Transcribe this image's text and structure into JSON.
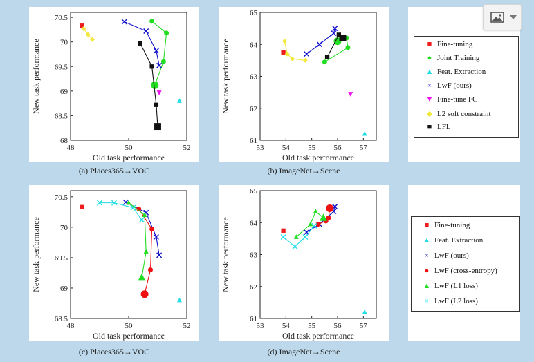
{
  "chart_data": [
    {
      "type": "scatter",
      "xlabel": "Old task performance",
      "ylabel": "New task performance",
      "xlim": [
        48,
        52
      ],
      "ylim": [
        68,
        70.6
      ],
      "xticks": [
        "48",
        "50",
        "52"
      ],
      "yticks": [
        "68",
        "68.5",
        "69",
        "69.5",
        "70",
        "70.5"
      ],
      "caption": "(a) Places365→VOC",
      "series": [
        {
          "name": "Fine-tuning",
          "color": "#ee1c1c",
          "marker": "square",
          "points": [
            [
              48.4,
              70.33
            ]
          ]
        },
        {
          "name": "Joint Training",
          "color": "#22dd22",
          "marker": "circle",
          "points": [
            [
              50.8,
              70.42
            ],
            [
              51.3,
              70.18
            ],
            [
              51.2,
              69.6
            ],
            [
              50.9,
              69.12
            ]
          ]
        },
        {
          "name": "Feat. Extraction",
          "color": "#22dde6",
          "marker": "triangle-up",
          "points": [
            [
              51.75,
              68.8
            ]
          ]
        },
        {
          "name": "LwF (ours)",
          "color": "#1010cc",
          "marker": "x",
          "points": [
            [
              49.85,
              70.41
            ],
            [
              50.6,
              70.22
            ],
            [
              50.95,
              69.82
            ],
            [
              51.05,
              69.52
            ]
          ]
        },
        {
          "name": "Fine-tune FC",
          "color": "#ee11ee",
          "marker": "triangle-down",
          "points": [
            [
              51.05,
              68.97
            ]
          ]
        },
        {
          "name": "L2 soft constraint",
          "color": "#f2e83a",
          "marker": "diamond",
          "points": [
            [
              48.45,
              70.27
            ],
            [
              48.6,
              70.15
            ],
            [
              48.75,
              70.05
            ]
          ]
        },
        {
          "name": "LFL",
          "color": "#111111",
          "marker": "square",
          "points": [
            [
              50.4,
              69.97
            ],
            [
              50.8,
              69.5
            ],
            [
              50.95,
              68.72
            ],
            [
              51.0,
              68.28
            ]
          ]
        }
      ]
    },
    {
      "type": "scatter",
      "xlabel": "Old task performance",
      "ylabel": "New task performance",
      "xlim": [
        53,
        57.5
      ],
      "ylim": [
        61,
        65
      ],
      "xticks": [
        "53",
        "54",
        "55",
        "56",
        "57"
      ],
      "yticks": [
        "61",
        "62",
        "63",
        "64",
        "65"
      ],
      "caption": "(b) ImageNet→Scene",
      "series": [
        {
          "name": "Fine-tuning",
          "color": "#ee1c1c",
          "marker": "square",
          "points": [
            [
              53.9,
              63.75
            ]
          ]
        },
        {
          "name": "Joint Training",
          "color": "#22dd22",
          "marker": "circle",
          "points": [
            [
              55.5,
              63.45
            ],
            [
              56.4,
              63.9
            ],
            [
              56.35,
              64.2
            ],
            [
              56.0,
              64.1
            ]
          ]
        },
        {
          "name": "Feat. Extraction",
          "color": "#22dde6",
          "marker": "triangle-up",
          "points": [
            [
              57.05,
              61.2
            ]
          ]
        },
        {
          "name": "LwF (ours)",
          "color": "#1010cc",
          "marker": "x",
          "points": [
            [
              54.8,
              63.7
            ],
            [
              55.3,
              64.0
            ],
            [
              55.85,
              64.35
            ],
            [
              55.9,
              64.5
            ]
          ]
        },
        {
          "name": "Fine-tune FC",
          "color": "#ee11ee",
          "marker": "triangle-down",
          "points": [
            [
              56.5,
              62.45
            ]
          ]
        },
        {
          "name": "L2 soft constraint",
          "color": "#f2e83a",
          "marker": "diamond",
          "points": [
            [
              53.95,
              64.1
            ],
            [
              54.05,
              63.7
            ],
            [
              54.25,
              63.55
            ],
            [
              54.75,
              63.5
            ]
          ]
        },
        {
          "name": "LFL",
          "color": "#111111",
          "marker": "square",
          "points": [
            [
              55.6,
              63.6
            ],
            [
              56.05,
              64.3
            ],
            [
              56.2,
              64.2
            ]
          ]
        }
      ]
    },
    {
      "type": "scatter",
      "xlabel": "Old task performance",
      "ylabel": "New task performance",
      "xlim": [
        48,
        52
      ],
      "ylim": [
        68.5,
        70.6
      ],
      "xticks": [
        "48",
        "50",
        "52"
      ],
      "yticks": [
        "68.5",
        "69",
        "69.5",
        "70",
        "70.5"
      ],
      "caption": "(c) Places365→VOC",
      "series": [
        {
          "name": "Fine-tuning",
          "color": "#ee1c1c",
          "marker": "square",
          "points": [
            [
              48.4,
              70.33
            ]
          ]
        },
        {
          "name": "Feat. Extraction",
          "color": "#22dde6",
          "marker": "triangle-up",
          "points": [
            [
              51.75,
              68.8
            ]
          ]
        },
        {
          "name": "LwF (ours)",
          "color": "#1010cc",
          "marker": "x",
          "points": [
            [
              49.9,
              70.41
            ],
            [
              50.6,
              70.24
            ],
            [
              50.95,
              69.84
            ],
            [
              51.05,
              69.54
            ]
          ]
        },
        {
          "name": "LwF (cross-entropy)",
          "color": "#ee1111",
          "marker": "circle",
          "points": [
            [
              50.35,
              70.3
            ],
            [
              50.8,
              69.97
            ],
            [
              50.75,
              69.3
            ],
            [
              50.55,
              68.9
            ]
          ]
        },
        {
          "name": "LwF (L1 loss)",
          "color": "#22dd22",
          "marker": "triangle-up",
          "points": [
            [
              50.0,
              70.4
            ],
            [
              50.55,
              70.2
            ],
            [
              50.6,
              69.6
            ],
            [
              50.45,
              69.17
            ]
          ]
        },
        {
          "name": "LwF (L2 loss)",
          "color": "#22dde6",
          "marker": "x",
          "points": [
            [
              49.0,
              70.4
            ],
            [
              49.5,
              70.4
            ],
            [
              50.15,
              70.32
            ],
            [
              50.45,
              70.12
            ]
          ]
        }
      ]
    },
    {
      "type": "scatter",
      "xlabel": "Old task performance",
      "ylabel": "New task performance",
      "xlim": [
        53,
        57.5
      ],
      "ylim": [
        61,
        65
      ],
      "xticks": [
        "53",
        "54",
        "55",
        "56",
        "57"
      ],
      "yticks": [
        "61",
        "62",
        "63",
        "64",
        "65"
      ],
      "caption": "(d) ImageNet→Scene",
      "series": [
        {
          "name": "Fine-tuning",
          "color": "#ee1c1c",
          "marker": "square",
          "points": [
            [
              53.9,
              63.75
            ]
          ]
        },
        {
          "name": "Feat. Extraction",
          "color": "#22dde6",
          "marker": "triangle-up",
          "points": [
            [
              57.05,
              61.2
            ]
          ]
        },
        {
          "name": "LwF (ours)",
          "color": "#1010cc",
          "marker": "x",
          "points": [
            [
              54.8,
              63.7
            ],
            [
              55.3,
              63.95
            ],
            [
              55.85,
              64.35
            ],
            [
              55.9,
              64.5
            ]
          ]
        },
        {
          "name": "LwF (cross-entropy)",
          "color": "#ee1111",
          "marker": "circle",
          "points": [
            [
              55.25,
              63.95
            ],
            [
              55.55,
              64.05
            ],
            [
              55.65,
              64.15
            ],
            [
              55.7,
              64.45
            ]
          ]
        },
        {
          "name": "LwF (L1 loss)",
          "color": "#22dd22",
          "marker": "triangle-up",
          "points": [
            [
              54.4,
              63.55
            ],
            [
              54.95,
              63.95
            ],
            [
              55.15,
              64.35
            ],
            [
              55.45,
              64.15
            ]
          ]
        },
        {
          "name": "LwF (L2 loss)",
          "color": "#22dde6",
          "marker": "x",
          "points": [
            [
              53.9,
              63.55
            ],
            [
              54.35,
              63.25
            ],
            [
              54.75,
              63.55
            ],
            [
              55.1,
              63.9
            ]
          ]
        }
      ]
    }
  ],
  "legends": [
    {
      "items": [
        {
          "label": "Fine-tuning",
          "color": "#ee1c1c",
          "symbol": "■"
        },
        {
          "label": "Joint Training",
          "color": "#22dd22",
          "symbol": "●"
        },
        {
          "label": "Feat. Extraction",
          "color": "#22dde6",
          "symbol": "▲"
        },
        {
          "label": "LwF (ours)",
          "color": "#1010cc",
          "symbol": "×"
        },
        {
          "label": "Fine-tune FC",
          "color": "#ee11ee",
          "symbol": "▼"
        },
        {
          "label": "L2 soft constraint",
          "color": "#f2e83a",
          "symbol": "◆"
        },
        {
          "label": "LFL",
          "color": "#111111",
          "symbol": "■"
        }
      ]
    },
    {
      "items": [
        {
          "label": "Fine-tuning",
          "color": "#ee1c1c",
          "symbol": "■"
        },
        {
          "label": "Feat. Extraction",
          "color": "#22dde6",
          "symbol": "▲"
        },
        {
          "label": "LwF (ours)",
          "color": "#1010cc",
          "symbol": "×"
        },
        {
          "label": "LwF (cross-entropy)",
          "color": "#ee1111",
          "symbol": "●"
        },
        {
          "label": "LwF (L1 loss)",
          "color": "#22dd22",
          "symbol": "▲"
        },
        {
          "label": "LwF (L2 loss)",
          "color": "#22dde6",
          "symbol": "×"
        }
      ]
    }
  ],
  "toolbar": {
    "image_icon": "image-icon",
    "dropdown_icon": "chevron-down-icon"
  }
}
